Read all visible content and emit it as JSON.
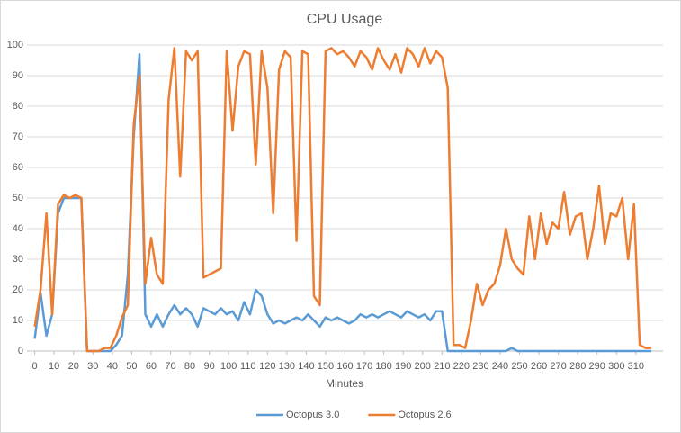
{
  "chart_data": {
    "type": "line",
    "title": "CPU Usage",
    "x_label": "Minutes",
    "x": [
      0,
      3,
      6,
      9,
      12,
      15,
      18,
      21,
      24,
      27,
      30,
      33,
      36,
      39,
      42,
      45,
      48,
      51,
      54,
      57,
      60,
      63,
      66,
      69,
      72,
      75,
      78,
      81,
      84,
      87,
      90,
      93,
      96,
      99,
      102,
      105,
      108,
      111,
      114,
      117,
      120,
      123,
      126,
      129,
      132,
      135,
      138,
      141,
      144,
      147,
      150,
      153,
      156,
      159,
      162,
      165,
      168,
      171,
      174,
      177,
      180,
      183,
      186,
      189,
      192,
      195,
      198,
      201,
      204,
      207,
      210,
      213,
      216,
      219,
      222,
      225,
      228,
      231,
      234,
      237,
      240,
      243,
      246,
      249,
      252,
      255,
      258,
      261,
      264,
      267,
      270,
      273,
      276,
      279,
      282,
      285,
      288,
      291,
      294,
      297,
      300,
      303,
      306,
      309,
      312,
      315,
      318
    ],
    "series": [
      {
        "name": "Octopus 3.0",
        "color": "#5b9bd5",
        "values": [
          4,
          19,
          5,
          12,
          45,
          50,
          50,
          50,
          50,
          0,
          0,
          0,
          0,
          0,
          2,
          5,
          25,
          70,
          97,
          12,
          8,
          12,
          8,
          12,
          15,
          12,
          14,
          12,
          8,
          14,
          13,
          12,
          14,
          12,
          13,
          10,
          16,
          12,
          20,
          18,
          12,
          9,
          10,
          9,
          10,
          11,
          10,
          12,
          10,
          8,
          11,
          10,
          11,
          10,
          9,
          10,
          12,
          11,
          12,
          11,
          12,
          13,
          12,
          11,
          13,
          12,
          11,
          12,
          10,
          13,
          13,
          0,
          0,
          0,
          0,
          0,
          0,
          0,
          0,
          0,
          0,
          0,
          1,
          0,
          0,
          0,
          0,
          0,
          0,
          0,
          0,
          0,
          0,
          0,
          0,
          0,
          0,
          0,
          0,
          0,
          0,
          0,
          0,
          0,
          0,
          0,
          0
        ]
      },
      {
        "name": "Octopus 2.6",
        "color": "#ed7d31",
        "values": [
          8,
          20,
          45,
          12,
          48,
          51,
          50,
          51,
          50,
          0,
          0,
          0,
          1,
          1,
          5,
          11,
          15,
          74,
          90,
          22,
          37,
          25,
          22,
          82,
          99,
          57,
          98,
          95,
          98,
          24,
          25,
          26,
          27,
          98,
          72,
          93,
          98,
          97,
          61,
          98,
          86,
          45,
          92,
          98,
          96,
          36,
          98,
          97,
          18,
          15,
          98,
          99,
          97,
          98,
          96,
          93,
          98,
          96,
          92,
          99,
          95,
          92,
          97,
          91,
          99,
          97,
          93,
          99,
          94,
          98,
          96,
          86,
          2,
          2,
          1,
          10,
          22,
          15,
          20,
          22,
          28,
          40,
          30,
          27,
          25,
          44,
          30,
          45,
          35,
          42,
          40,
          52,
          38,
          44,
          45,
          30,
          40,
          54,
          35,
          45,
          44,
          50,
          30,
          48,
          2,
          1,
          1
        ]
      }
    ],
    "xlim": [
      -4,
      324
    ],
    "xticks": [
      0,
      10,
      20,
      30,
      40,
      50,
      60,
      70,
      80,
      90,
      100,
      110,
      120,
      130,
      140,
      150,
      160,
      170,
      180,
      190,
      200,
      210,
      220,
      230,
      240,
      250,
      260,
      270,
      280,
      290,
      300,
      310
    ],
    "ylim": [
      0,
      100
    ],
    "yticks": [
      0,
      10,
      20,
      30,
      40,
      50,
      60,
      70,
      80,
      90,
      100
    ],
    "grid": true,
    "legend": "bottom"
  }
}
